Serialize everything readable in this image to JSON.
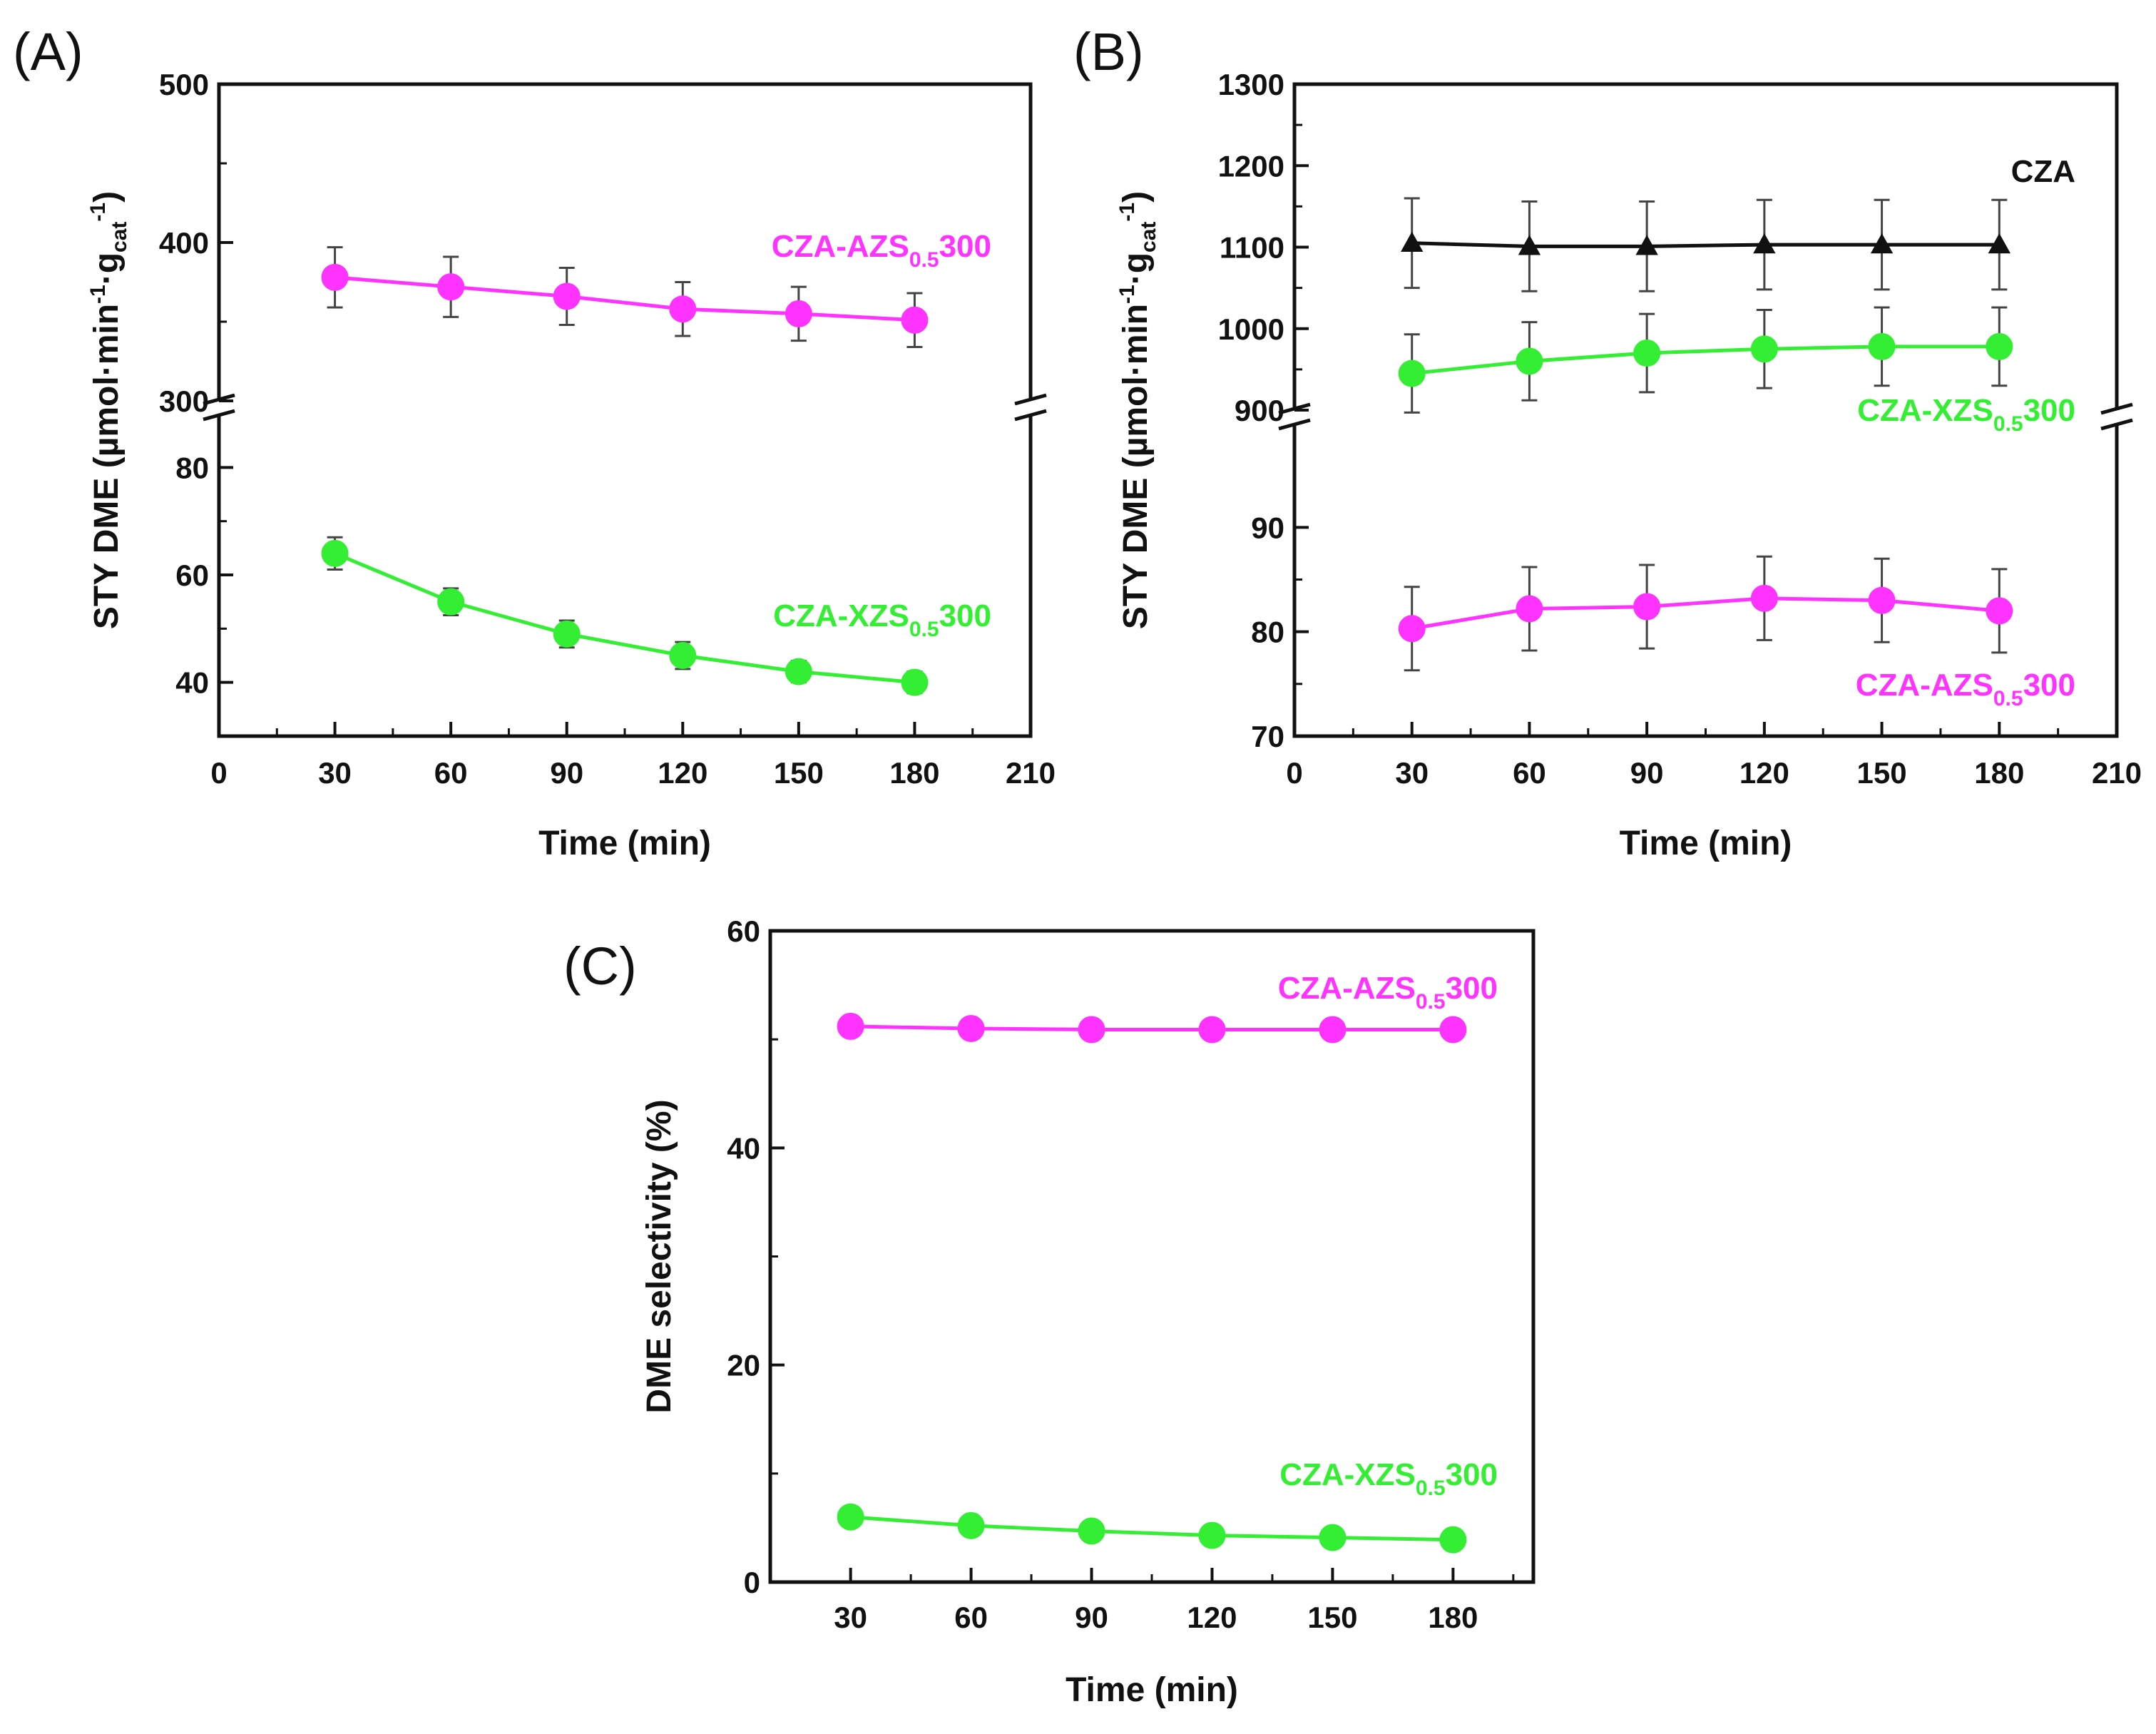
{
  "figure": {
    "colors": {
      "magenta": "#ff33ff",
      "green": "#33ee33",
      "black": "#111111"
    }
  },
  "chart_data": [
    {
      "panel": "(A)",
      "type": "line",
      "xlabel": "Time (min)",
      "ylabel": "STY DME (µmol·min⁻¹·g_cat⁻¹)",
      "ylabel_parts": {
        "main": "STY DME (µmol·min",
        "sup1": "-1",
        "mid": "·g",
        "sub": "cat",
        "sup2": "-1",
        "end": ")"
      },
      "xlim": [
        0,
        210
      ],
      "xticks": [
        "0",
        "30",
        "60",
        "90",
        "120",
        "150",
        "180",
        "210"
      ],
      "axis_break": true,
      "upper_ylim": [
        300,
        500
      ],
      "upper_yticks": [
        "300",
        "400",
        "500"
      ],
      "lower_ylim": [
        30,
        90
      ],
      "lower_yticks": [
        "40",
        "60",
        "80"
      ],
      "series": [
        {
          "name": "CZA-AZS0.5300",
          "label_parts": [
            "CZA-AZS",
            "0.5",
            "300"
          ],
          "color": "#ff33ff",
          "marker": "circle",
          "segment": "upper",
          "x": [
            30,
            60,
            90,
            120,
            150,
            180
          ],
          "y": [
            378,
            372,
            366,
            358,
            355,
            351
          ],
          "err": [
            19,
            19,
            18,
            17,
            17,
            17
          ]
        },
        {
          "name": "CZA-XZS0.5300",
          "label_parts": [
            "CZA-XZS",
            "0.5",
            "300"
          ],
          "color": "#33ee33",
          "marker": "circle",
          "segment": "lower",
          "x": [
            30,
            60,
            90,
            120,
            150,
            180
          ],
          "y": [
            64,
            55,
            49,
            45,
            42,
            40
          ],
          "err": [
            3,
            2.5,
            2.5,
            2.5,
            2,
            2
          ]
        }
      ]
    },
    {
      "panel": "(B)",
      "type": "line",
      "xlabel": "Time (min)",
      "ylabel": "STY DME (µmol·min⁻¹·g_cat⁻¹)",
      "ylabel_parts": {
        "main": "STY DME (µmol·min",
        "sup1": "-1",
        "mid": "·g",
        "sub": "cat",
        "sup2": "-1",
        "end": ")"
      },
      "xlim": [
        0,
        210
      ],
      "xticks": [
        "0",
        "30",
        "60",
        "90",
        "120",
        "150",
        "180",
        "210"
      ],
      "axis_break": true,
      "upper_ylim": [
        900,
        1300
      ],
      "upper_yticks": [
        "900",
        "1000",
        "1100",
        "1200",
        "1300"
      ],
      "lower_ylim": [
        70,
        100
      ],
      "lower_yticks": [
        "70",
        "80",
        "90"
      ],
      "series": [
        {
          "name": "CZA",
          "label_parts": [
            "CZA",
            "",
            ""
          ],
          "color": "#111111",
          "marker": "triangle",
          "segment": "upper",
          "x": [
            30,
            60,
            90,
            120,
            150,
            180
          ],
          "y": [
            1105,
            1101,
            1101,
            1103,
            1103,
            1103
          ],
          "err": [
            55,
            55,
            55,
            55,
            55,
            55
          ]
        },
        {
          "name": "CZA-XZS0.5300",
          "label_parts": [
            "CZA-XZS",
            "0.5",
            "300"
          ],
          "color": "#33ee33",
          "marker": "circle",
          "segment": "upper",
          "x": [
            30,
            60,
            90,
            120,
            150,
            180
          ],
          "y": [
            945,
            960,
            970,
            975,
            978,
            978
          ],
          "err": [
            48,
            48,
            48,
            48,
            48,
            48
          ]
        },
        {
          "name": "CZA-AZS0.5300",
          "label_parts": [
            "CZA-AZS",
            "0.5",
            "300"
          ],
          "color": "#ff33ff",
          "marker": "circle",
          "segment": "lower",
          "x": [
            30,
            60,
            90,
            120,
            150,
            180
          ],
          "y": [
            80.3,
            82.2,
            82.4,
            83.2,
            83.0,
            82.0
          ],
          "err": [
            4,
            4,
            4,
            4,
            4,
            4
          ]
        }
      ]
    },
    {
      "panel": "(C)",
      "type": "line",
      "xlabel": "Time (min)",
      "ylabel": "DME selectivity (%)",
      "xlim": [
        10,
        200
      ],
      "xticks": [
        "30",
        "60",
        "90",
        "120",
        "150",
        "180"
      ],
      "axis_break": false,
      "ylim": [
        0,
        60
      ],
      "yticks": [
        "0",
        "20",
        "40",
        "60"
      ],
      "series": [
        {
          "name": "CZA-AZS0.5300",
          "label_parts": [
            "CZA-AZS",
            "0.5",
            "300"
          ],
          "color": "#ff33ff",
          "marker": "circle",
          "x": [
            30,
            60,
            90,
            120,
            150,
            180
          ],
          "y": [
            51.2,
            51.0,
            50.9,
            50.9,
            50.9,
            50.9
          ]
        },
        {
          "name": "CZA-XZS0.5300",
          "label_parts": [
            "CZA-XZS",
            "0.5",
            "300"
          ],
          "color": "#33ee33",
          "marker": "circle",
          "x": [
            30,
            60,
            90,
            120,
            150,
            180
          ],
          "y": [
            6.0,
            5.2,
            4.7,
            4.3,
            4.1,
            3.9
          ]
        }
      ]
    }
  ]
}
